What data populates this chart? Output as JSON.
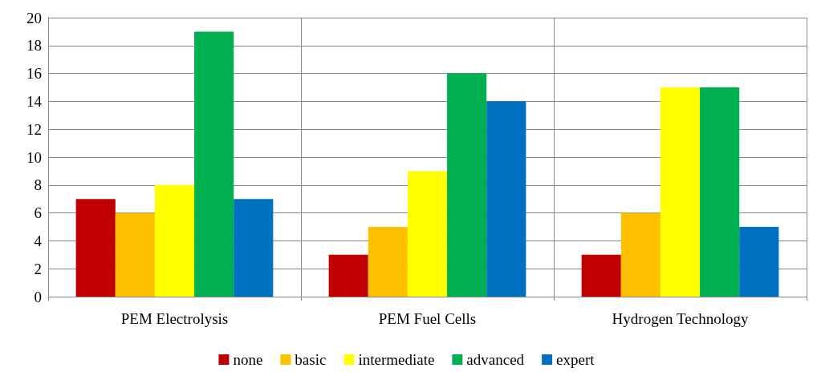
{
  "chart_data": {
    "type": "bar",
    "categories": [
      "PEM Electrolysis",
      "PEM Fuel Cells",
      "Hydrogen Technology"
    ],
    "series": [
      {
        "name": "none",
        "color": "#c00000",
        "values": [
          7,
          3,
          3
        ]
      },
      {
        "name": "basic",
        "color": "#ffc000",
        "values": [
          6,
          5,
          6
        ]
      },
      {
        "name": "intermediate",
        "color": "#ffff00",
        "values": [
          8,
          9,
          15
        ]
      },
      {
        "name": "advanced",
        "color": "#00b050",
        "values": [
          19,
          16,
          15
        ]
      },
      {
        "name": "expert",
        "color": "#0070c0",
        "values": [
          7,
          14,
          5
        ]
      }
    ],
    "ylim": [
      0,
      20
    ],
    "yticks": [
      0,
      2,
      4,
      6,
      8,
      10,
      12,
      14,
      16,
      18,
      20
    ],
    "grid": true,
    "legend": "bottom"
  }
}
